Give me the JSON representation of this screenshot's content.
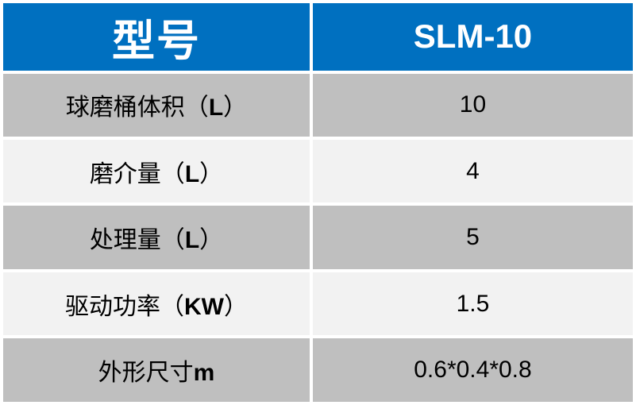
{
  "table": {
    "header": {
      "model_label": "型号",
      "model_value": "SLM-10"
    },
    "rows": [
      {
        "label_pre": "球磨桶体积（",
        "unit": "L",
        "label_post": "）",
        "value": "10"
      },
      {
        "label_pre": "磨介量（",
        "unit": "L",
        "label_post": "）",
        "value": "4"
      },
      {
        "label_pre": "处理量（",
        "unit": "L",
        "label_post": "）",
        "value": "5"
      },
      {
        "label_pre": "驱动功率（",
        "unit": "KW",
        "label_post": "）",
        "value": "1.5"
      },
      {
        "label_pre": "外形尺寸",
        "unit": "m",
        "label_post": "",
        "value": "0.6*0.4*0.8"
      }
    ]
  },
  "colors": {
    "header_bg": "#0070C0",
    "header_text": "#FFFFFF",
    "row_gray_bg": "#BFBFBF",
    "row_light_bg": "#F2F2F2",
    "cell_text": "#000000",
    "gap": "#FFFFFF"
  }
}
